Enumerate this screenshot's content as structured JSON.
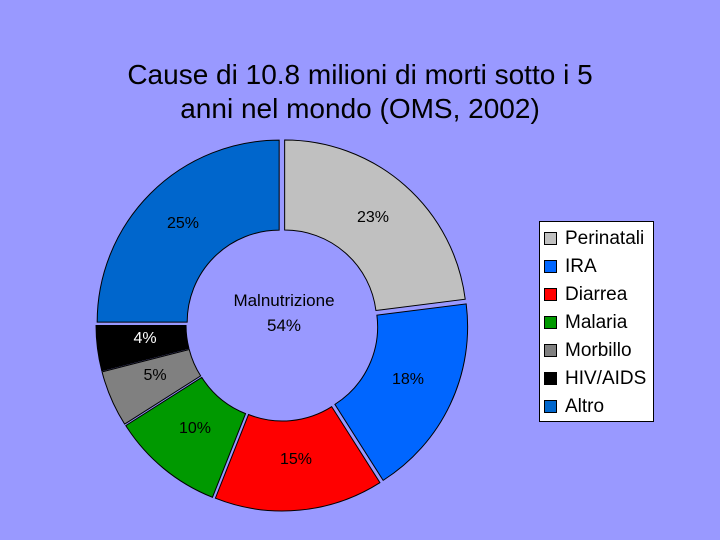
{
  "chart_data": {
    "type": "pie",
    "title": "Cause di 10.8 milioni di morti sotto i 5 anni nel mondo (OMS, 2002)",
    "title_lines": [
      "Cause di 10.8 milioni di morti sotto i 5",
      "anni nel mondo (OMS, 2002)"
    ],
    "center_label": [
      "Malnutrizione",
      "54%"
    ],
    "slices": [
      {
        "name": "Perinatali",
        "value": 23,
        "label": "23%",
        "color": "#c0c0c0"
      },
      {
        "name": "IRA",
        "value": 18,
        "label": "18%",
        "color": "#0066ff"
      },
      {
        "name": "Diarrea",
        "value": 15,
        "label": "15%",
        "color": "#ff0000"
      },
      {
        "name": "Malaria",
        "value": 10,
        "label": "10%",
        "color": "#009900"
      },
      {
        "name": "Morbillo",
        "value": 5,
        "label": "5%",
        "color": "#808080"
      },
      {
        "name": "HIV/AIDS",
        "value": 4,
        "label": "4%",
        "color": "#000000"
      },
      {
        "name": "Altro",
        "value": 25,
        "label": "25%",
        "color": "#0066cc"
      }
    ],
    "legend_position": "right"
  }
}
